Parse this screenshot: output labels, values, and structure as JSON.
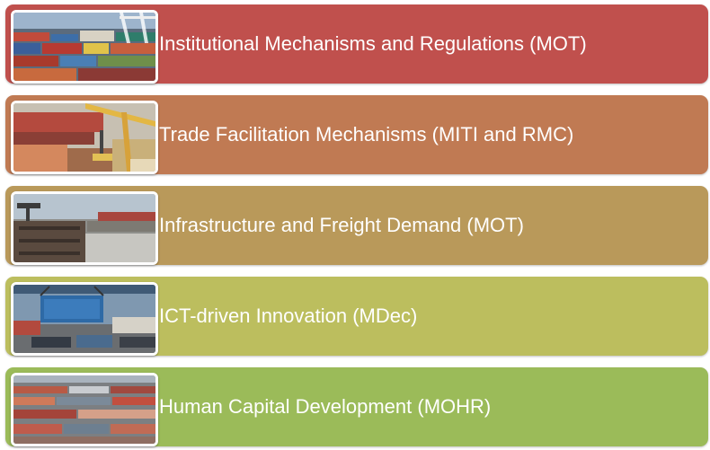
{
  "items": [
    {
      "label": "Institutional Mechanisms and Regulations (MOT)",
      "color": "#c0504d",
      "image": "container-port-photo"
    },
    {
      "label": "Trade Facilitation Mechanisms (MITI  and RMC)",
      "color": "#c07a53",
      "image": "cargo-crane-photo"
    },
    {
      "label": "Infrastructure and Freight Demand (MOT)",
      "color": "#b9995a",
      "image": "freight-terminal-photo"
    },
    {
      "label": "ICT-driven Innovation (MDec)",
      "color": "#bcbe5e",
      "image": "container-lifting-photo"
    },
    {
      "label": "Human Capital Development (MOHR)",
      "color": "#9bbb59",
      "image": "container-yard-photo"
    }
  ]
}
